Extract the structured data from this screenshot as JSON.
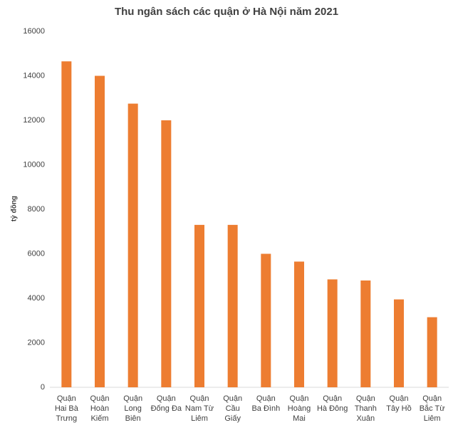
{
  "chart_data": {
    "type": "bar",
    "title": "Thu ngân sách các quận ở Hà Nội năm 2021",
    "y_label": "tỷ đồng",
    "categories": [
      "Quận Hai Bà Trưng",
      "Quận Hoàn Kiếm",
      "Quận Long Biên",
      "Quận Đống Đa",
      "Quận Nam Từ Liêm",
      "Quận Cầu Giấy",
      "Quận Ba Đình",
      "Quận Hoàng Mai",
      "Quận Hà Đông",
      "Quận Thanh Xuân",
      "Quận Tây Hồ",
      "Quận Bắc Từ Liêm"
    ],
    "values": [
      14650,
      14000,
      12750,
      12000,
      7300,
      7300,
      6000,
      5650,
      4850,
      4800,
      3950,
      3150
    ],
    "color": "#ed7d31",
    "ylim": [
      0,
      16000
    ],
    "yticks": [
      0,
      2000,
      4000,
      6000,
      8000,
      10000,
      12000,
      14000,
      16000
    ],
    "grid": false
  }
}
